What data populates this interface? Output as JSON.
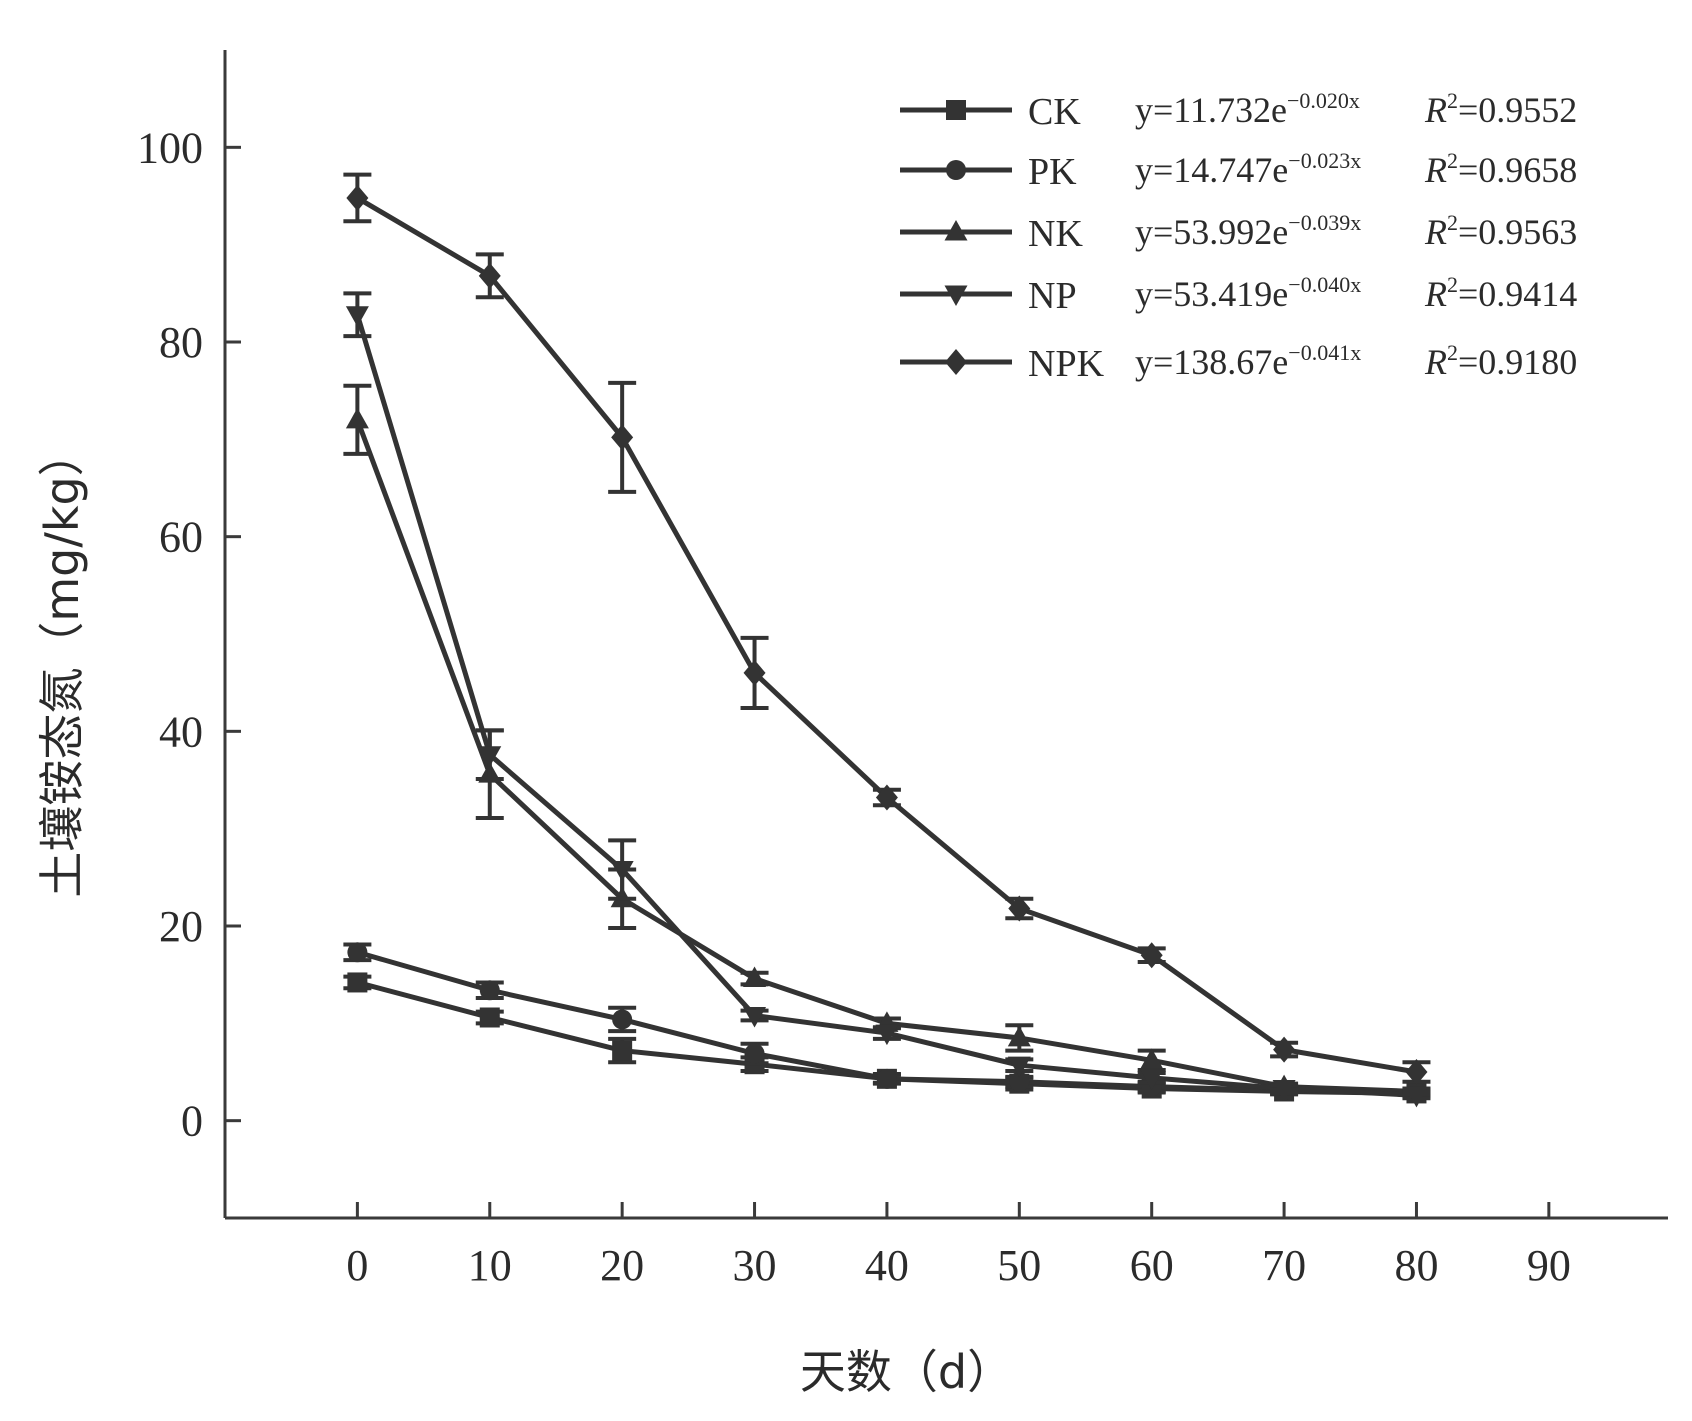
{
  "chart_data": {
    "type": "line",
    "xlabel": "天数（d）",
    "ylabel": "土壤铵态氮（mg/kg）",
    "xlim": [
      -10,
      99
    ],
    "ylim": [
      -10,
      110
    ],
    "x_ticks": [
      0,
      10,
      20,
      30,
      40,
      50,
      60,
      70,
      80,
      90
    ],
    "y_ticks": [
      0,
      20,
      40,
      60,
      80,
      100
    ],
    "x": [
      0,
      10,
      20,
      30,
      40,
      50,
      60,
      70,
      80
    ],
    "legend_position": "top-right",
    "series": [
      {
        "name": "CK",
        "marker": "square",
        "equation": "y=11.732e",
        "exponent": "−0.020x",
        "r2_label": "R",
        "r2_value": "=0.9552",
        "values": [
          14.2,
          10.6,
          7.2,
          5.8,
          4.3,
          3.8,
          3.3,
          3.0,
          2.8
        ],
        "errors": [
          0.6,
          0.6,
          1.2,
          0.7,
          0.5,
          0.6,
          0.4,
          0.3,
          0.3
        ]
      },
      {
        "name": "PK",
        "marker": "circle",
        "equation": "y=14.747e",
        "exponent": "−0.023x",
        "r2_label": "R",
        "r2_value": "=0.9658",
        "values": [
          17.3,
          13.4,
          10.4,
          6.9,
          4.3,
          4.0,
          3.5,
          3.1,
          2.9
        ],
        "errors": [
          0.8,
          0.8,
          1.2,
          1.0,
          0.4,
          0.5,
          0.5,
          0.3,
          0.3
        ]
      },
      {
        "name": "NK",
        "marker": "triangle-up",
        "equation": "y=53.992e",
        "exponent": "−0.039x",
        "r2_label": "R",
        "r2_value": "=0.9563",
        "values": [
          72.0,
          35.6,
          22.8,
          14.6,
          10.0,
          8.5,
          6.2,
          3.5,
          3.0
        ],
        "errors": [
          3.5,
          4.5,
          3.0,
          0.6,
          0.5,
          1.3,
          1.0,
          0.3,
          0.3
        ]
      },
      {
        "name": "NP",
        "marker": "triangle-down",
        "equation": "y=53.419e",
        "exponent": "−0.040x",
        "r2_label": "R",
        "r2_value": "=0.9414",
        "values": [
          82.8,
          37.6,
          25.8,
          10.8,
          9.0,
          5.7,
          4.4,
          3.3,
          2.6
        ],
        "errors": [
          2.2,
          2.5,
          3.0,
          0.5,
          0.6,
          0.6,
          0.5,
          0.3,
          0.3
        ]
      },
      {
        "name": "NPK",
        "marker": "diamond",
        "equation": "y=138.67e",
        "exponent": "−0.041x",
        "r2_label": "R",
        "r2_value": "=0.9180",
        "values": [
          94.8,
          86.8,
          70.2,
          46.0,
          33.2,
          21.8,
          17.0,
          7.3,
          5.0
        ],
        "errors": [
          2.4,
          2.2,
          5.6,
          3.6,
          0.8,
          1.0,
          0.7,
          0.7,
          1.0
        ]
      }
    ]
  }
}
